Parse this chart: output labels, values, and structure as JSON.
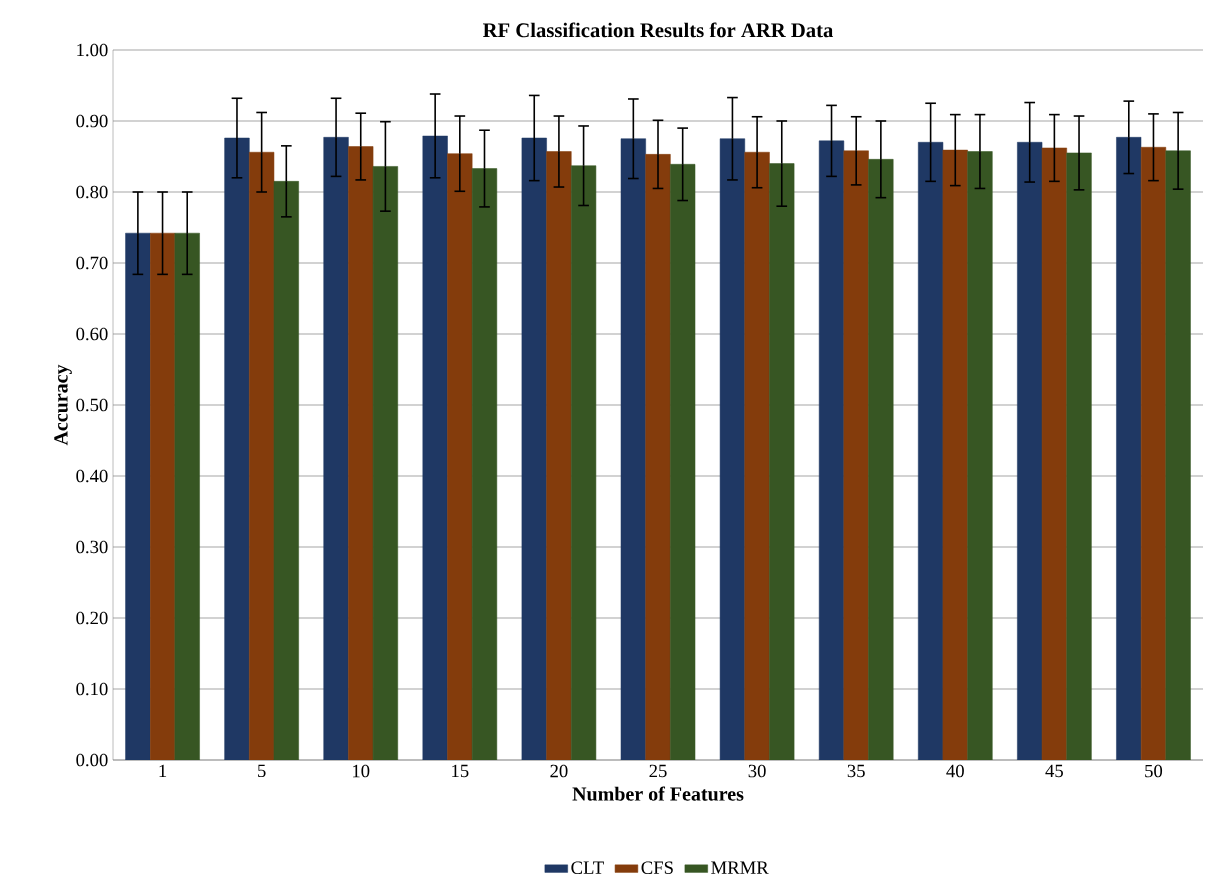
{
  "chart_data": {
    "type": "bar",
    "title": "RF Classification Results for ARR Data",
    "xlabel": "Number of Features",
    "ylabel": "Accuracy",
    "categories": [
      "1",
      "5",
      "10",
      "15",
      "20",
      "25",
      "30",
      "35",
      "40",
      "45",
      "50"
    ],
    "series": [
      {
        "name": "CLT",
        "color": "#1f3864",
        "values": [
          0.742,
          0.876,
          0.877,
          0.879,
          0.876,
          0.875,
          0.875,
          0.872,
          0.87,
          0.87,
          0.877
        ],
        "errors": [
          0.058,
          0.056,
          0.055,
          0.059,
          0.06,
          0.056,
          0.058,
          0.05,
          0.055,
          0.056,
          0.051
        ]
      },
      {
        "name": "CFS",
        "color": "#843c0c",
        "values": [
          0.742,
          0.856,
          0.864,
          0.854,
          0.857,
          0.853,
          0.856,
          0.858,
          0.859,
          0.862,
          0.863
        ],
        "errors": [
          0.058,
          0.056,
          0.047,
          0.053,
          0.05,
          0.048,
          0.05,
          0.048,
          0.05,
          0.047,
          0.047
        ]
      },
      {
        "name": "MRMR",
        "color": "#375623",
        "values": [
          0.742,
          0.815,
          0.836,
          0.833,
          0.837,
          0.839,
          0.84,
          0.846,
          0.857,
          0.855,
          0.858
        ],
        "errors": [
          0.058,
          0.05,
          0.063,
          0.054,
          0.056,
          0.051,
          0.06,
          0.054,
          0.052,
          0.052,
          0.054
        ]
      }
    ],
    "ylim": [
      0,
      1
    ],
    "yticks": [
      {
        "value": 0,
        "label": "0.00"
      },
      {
        "value": 0.1,
        "label": "0.10"
      },
      {
        "value": 0.2,
        "label": "0.20"
      },
      {
        "value": 0.3,
        "label": "0.30"
      },
      {
        "value": 0.4,
        "label": "0.40"
      },
      {
        "value": 0.5,
        "label": "0.50"
      },
      {
        "value": 0.6,
        "label": "0.60"
      },
      {
        "value": 0.7,
        "label": "0.70"
      },
      {
        "value": 0.8,
        "label": "0.80"
      },
      {
        "value": 0.9,
        "label": "0.90"
      },
      {
        "value": 1,
        "label": "1.00"
      }
    ],
    "grid": "y",
    "legend": "bottom"
  }
}
